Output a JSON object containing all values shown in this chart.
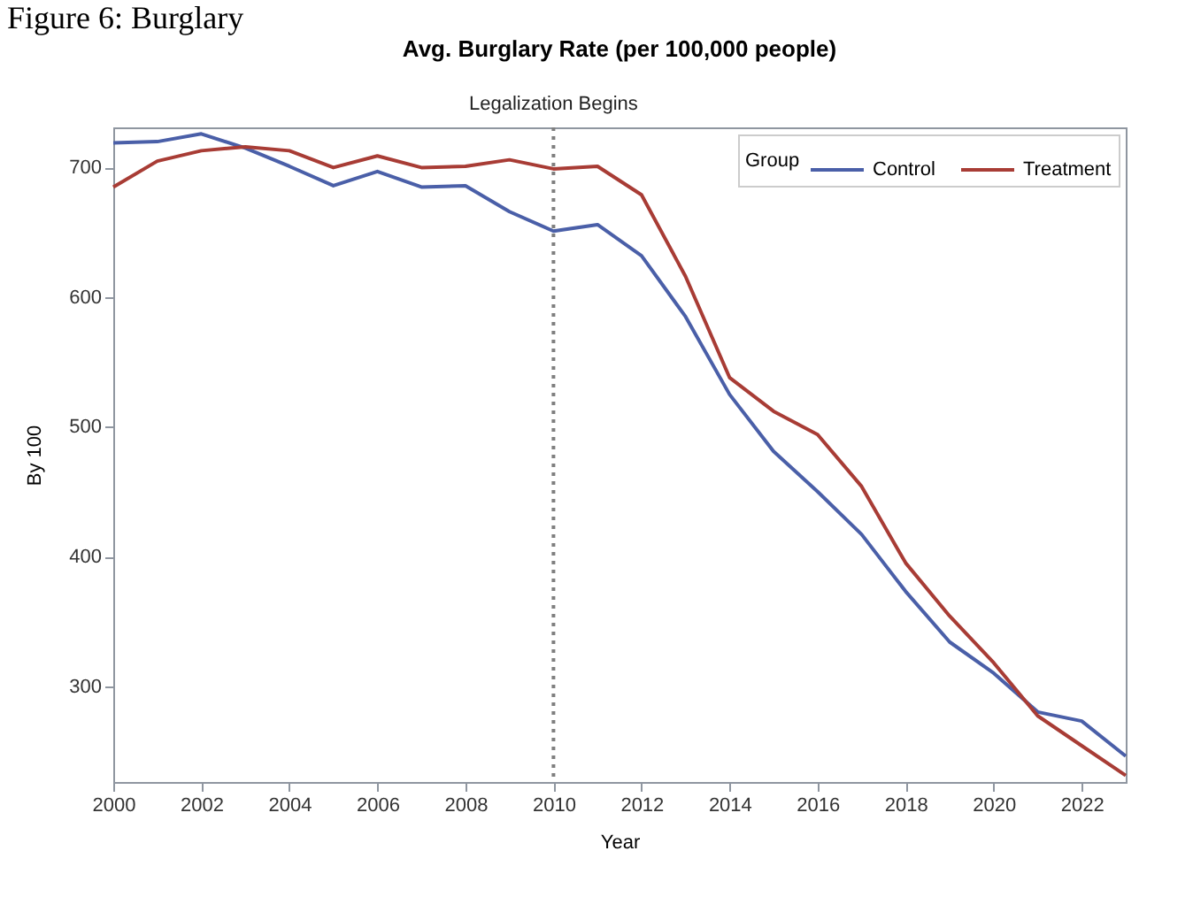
{
  "chart_data": {
    "type": "line",
    "title": "Avg. Burglary Rate (per 100,000 people)",
    "xlabel": "Year",
    "ylabel": "By 100",
    "legend_title": "Group",
    "annotations": [
      "Figure 6: Burglary"
    ],
    "x": [
      2000,
      2001,
      2002,
      2003,
      2004,
      2005,
      2006,
      2007,
      2008,
      2009,
      2010,
      2011,
      2012,
      2013,
      2014,
      2015,
      2016,
      2017,
      2018,
      2019,
      2020,
      2021,
      2022,
      2023
    ],
    "series": [
      {
        "name": "Control",
        "color": "#4a5fa8",
        "values": [
          719,
          720,
          726,
          715,
          701,
          686,
          697,
          685,
          686,
          666,
          651,
          656,
          632,
          585,
          525,
          481,
          450,
          417,
          373,
          334,
          310,
          280,
          273,
          246
        ]
      },
      {
        "name": "Treatment",
        "color": "#a83c35",
        "values": [
          685,
          705,
          713,
          716,
          713,
          700,
          709,
          700,
          701,
          706,
          699,
          701,
          679,
          616,
          538,
          512,
          494,
          454,
          395,
          354,
          318,
          277,
          254,
          231
        ]
      }
    ],
    "xlim": [
      2000,
      2023
    ],
    "xticks": [
      2000,
      2002,
      2004,
      2006,
      2008,
      2010,
      2012,
      2014,
      2016,
      2018,
      2020,
      2022
    ],
    "ylim": [
      226,
      731
    ],
    "yticks": [
      300,
      400,
      500,
      600,
      700
    ],
    "ref_lines": [
      {
        "axis": "x",
        "value": 2010,
        "label": "Legalization Begins",
        "color": "#7f7f7f",
        "line_style": "dotted"
      }
    ],
    "grid": false,
    "legend": "top right",
    "marker": "none",
    "line_style": "solid"
  }
}
